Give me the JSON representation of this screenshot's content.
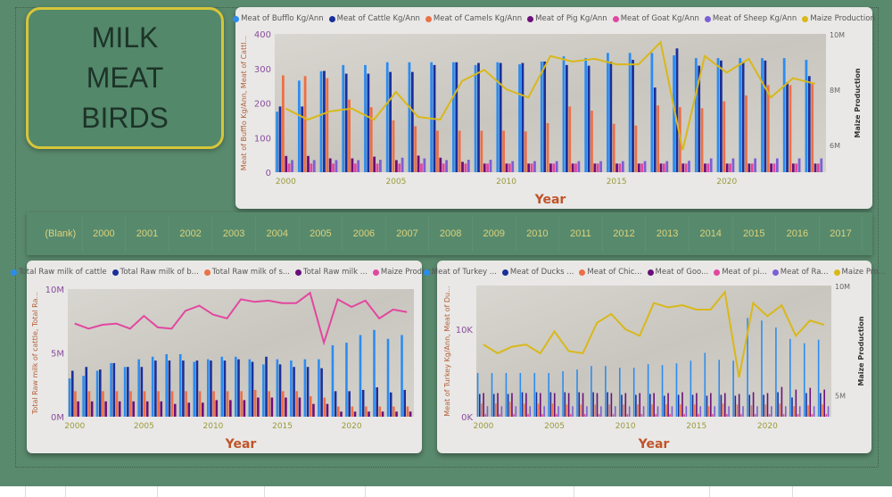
{
  "title": {
    "lines": [
      "MILK",
      "MEAT",
      "BIRDS"
    ]
  },
  "slicer": {
    "items": [
      "(Blank)",
      "2000",
      "2001",
      "2002",
      "2003",
      "2004",
      "2005",
      "2006",
      "2007",
      "2008",
      "2009",
      "2010",
      "2011",
      "2012",
      "2013",
      "2014",
      "2015",
      "2016",
      "2017"
    ]
  },
  "colors": {
    "background": "#5a8a6e",
    "title_border": "#d6c53a",
    "card": "#e9e8e6"
  },
  "chart_data": [
    {
      "type": "bar",
      "title": "",
      "xlabel": "Year",
      "ylabel": "Meat of Bufflo Kg/Ann, Meat of Cattl...",
      "y2label": "Maize Production",
      "x": [
        2000,
        2001,
        2002,
        2003,
        2004,
        2005,
        2006,
        2007,
        2008,
        2009,
        2010,
        2011,
        2012,
        2013,
        2014,
        2015,
        2016,
        2017,
        2018,
        2019,
        2020,
        2021,
        2022,
        2023,
        2024
      ],
      "x_ticks": [
        "2000",
        "2005",
        "2010",
        "2015",
        "2020"
      ],
      "y_ticks": [
        "0",
        "100",
        "200",
        "300",
        "400"
      ],
      "y2_ticks": [
        "6M",
        "8M",
        "10M"
      ],
      "ylim": [
        0,
        400
      ],
      "y2lim": [
        5000000,
        10000000
      ],
      "legend": "top",
      "series": [
        {
          "name": "Meat of Bufflo Kg/Ann",
          "color": "#2b8cf0",
          "values": [
            175,
            265,
            292,
            310,
            310,
            318,
            318,
            318,
            318,
            310,
            318,
            312,
            320,
            335,
            330,
            345,
            345,
            345,
            338,
            330,
            330,
            330,
            330,
            330,
            325
          ]
        },
        {
          "name": "Meat of Cattle Kg/Ann",
          "color": "#1a2f9a",
          "values": [
            190,
            190,
            293,
            285,
            285,
            290,
            290,
            310,
            318,
            316,
            316,
            316,
            320,
            310,
            308,
            320,
            325,
            245,
            358,
            308,
            323,
            320,
            323,
            260,
            278
          ]
        },
        {
          "name": "Meat of Camels Kg/Ann",
          "color": "#ec7046",
          "values": [
            280,
            278,
            272,
            210,
            188,
            150,
            133,
            120,
            120,
            120,
            120,
            118,
            142,
            190,
            178,
            140,
            135,
            193,
            188,
            185,
            205,
            222,
            252,
            252,
            255
          ]
        },
        {
          "name": "Meat of Pig Kg/Ann",
          "color": "#6b0f7a",
          "values": [
            47,
            47,
            40,
            40,
            45,
            35,
            48,
            42,
            30,
            25,
            25,
            25,
            25,
            25,
            25,
            25,
            25,
            25,
            25,
            25,
            25,
            25,
            25,
            25,
            25
          ]
        },
        {
          "name": "Meat of Goat Kg/Ann",
          "color": "#e2479f",
          "values": [
            25,
            25,
            25,
            25,
            25,
            25,
            25,
            25,
            25,
            25,
            25,
            25,
            25,
            25,
            25,
            25,
            25,
            25,
            25,
            25,
            25,
            25,
            25,
            25,
            25
          ]
        },
        {
          "name": "Meat of Sheep Kg/Ann",
          "color": "#7a5fd6",
          "values": [
            35,
            35,
            35,
            35,
            36,
            42,
            40,
            35,
            36,
            36,
            32,
            32,
            32,
            32,
            32,
            32,
            32,
            32,
            33,
            40,
            40,
            40,
            40,
            40,
            40
          ]
        }
      ],
      "line": {
        "name": "Maize Production",
        "color": "#d9b81a",
        "axis": "right",
        "values": [
          7300000,
          6900000,
          7200000,
          7300000,
          6900000,
          7900000,
          7000000,
          6900000,
          8300000,
          8700000,
          8000000,
          7700000,
          9200000,
          9000000,
          9100000,
          8900000,
          8900000,
          9700000,
          5800000,
          9200000,
          8600000,
          9100000,
          7700000,
          8400000,
          8200000
        ]
      }
    },
    {
      "type": "bar",
      "title": "",
      "xlabel": "Year",
      "ylabel": "Total Raw milk of cattle, Total Ra...",
      "y2label": "",
      "x": [
        2000,
        2001,
        2002,
        2003,
        2004,
        2005,
        2006,
        2007,
        2008,
        2009,
        2010,
        2011,
        2012,
        2013,
        2014,
        2015,
        2016,
        2017,
        2018,
        2019,
        2020,
        2021,
        2022,
        2023,
        2024
      ],
      "x_ticks": [
        "2000",
        "2005",
        "2010",
        "2015",
        "2020"
      ],
      "y_ticks": [
        "0M",
        "5M",
        "10M"
      ],
      "y2_ticks": [],
      "ylim": [
        0,
        10000000
      ],
      "legend": "top",
      "series": [
        {
          "name": "Total Raw milk of cattle",
          "color": "#2b8cf0",
          "values": [
            3000000,
            3200000,
            3600000,
            4200000,
            3900000,
            4500000,
            4700000,
            4900000,
            4900000,
            4300000,
            4500000,
            4700000,
            4700000,
            4500000,
            4100000,
            4500000,
            4400000,
            4500000,
            4500000,
            5600000,
            5800000,
            6400000,
            6800000,
            6100000,
            6400000
          ]
        },
        {
          "name": "Total Raw milk of b...",
          "color": "#1a2f9a",
          "values": [
            3600000,
            3900000,
            3700000,
            4200000,
            3900000,
            3900000,
            4400000,
            4400000,
            4400000,
            4400000,
            4400000,
            4400000,
            4500000,
            4300000,
            4700000,
            4100000,
            3900000,
            3900000,
            3800000,
            2000000,
            2000000,
            2100000,
            2300000,
            1900000,
            2100000
          ]
        },
        {
          "name": "Total Raw milk of s...",
          "color": "#ec7046",
          "values": [
            2000000,
            2000000,
            2000000,
            2000000,
            2000000,
            2000000,
            2000000,
            2000000,
            2000000,
            2000000,
            2000000,
            2000000,
            2000000,
            2100000,
            2000000,
            2000000,
            2000000,
            1600000,
            1500000,
            800000,
            800000,
            800000,
            800000,
            800000,
            800000
          ]
        },
        {
          "name": "Total Raw milk ...",
          "color": "#6b0f7a",
          "values": [
            1200000,
            1200000,
            1200000,
            1200000,
            1200000,
            1200000,
            1200000,
            1000000,
            1100000,
            1100000,
            1300000,
            1300000,
            1300000,
            1500000,
            1500000,
            1500000,
            1500000,
            1000000,
            1000000,
            400000,
            400000,
            400000,
            400000,
            400000,
            400000
          ]
        }
      ],
      "line": {
        "name": "Maize Produc...",
        "color": "#e2479f",
        "axis": "left",
        "values": [
          7300000,
          6900000,
          7200000,
          7300000,
          6900000,
          7900000,
          7000000,
          6900000,
          8300000,
          8700000,
          8000000,
          7700000,
          9200000,
          9000000,
          9100000,
          8900000,
          8900000,
          9700000,
          5800000,
          9200000,
          8600000,
          9100000,
          7700000,
          8400000,
          8200000
        ]
      }
    },
    {
      "type": "bar",
      "title": "",
      "xlabel": "Year",
      "ylabel": "Meat of Turkey Kg/Ann, Meat of Du...",
      "y2label": "Maize Production",
      "x": [
        2000,
        2001,
        2002,
        2003,
        2004,
        2005,
        2006,
        2007,
        2008,
        2009,
        2010,
        2011,
        2012,
        2013,
        2014,
        2015,
        2016,
        2017,
        2018,
        2019,
        2020,
        2021,
        2022,
        2023,
        2024
      ],
      "x_ticks": [
        "2000",
        "2005",
        "2010",
        "2015",
        "2020"
      ],
      "y_ticks": [
        "0K",
        "10K"
      ],
      "y2_ticks": [
        "5M",
        "10M"
      ],
      "ylim": [
        0,
        15000
      ],
      "y2lim": [
        4000000,
        10000000
      ],
      "legend": "top",
      "series": [
        {
          "name": "Meat of Turkey ...",
          "color": "#2b8cf0",
          "values": [
            5000,
            5000,
            5000,
            5000,
            5000,
            5000,
            5200,
            5400,
            5800,
            5800,
            5600,
            5600,
            6000,
            5900,
            6100,
            6400,
            7300,
            6500,
            6400,
            11300,
            11000,
            10200,
            8900,
            8400,
            8800
          ]
        },
        {
          "name": "Meat of Ducks ...",
          "color": "#1a2f9a",
          "values": [
            2600,
            2600,
            2600,
            2800,
            2800,
            2800,
            2800,
            2800,
            2800,
            2800,
            2500,
            2500,
            2600,
            2400,
            2500,
            2500,
            2400,
            2500,
            2400,
            2500,
            2500,
            2800,
            2200,
            2700,
            2700
          ]
        },
        {
          "name": "Meat of Chic...",
          "color": "#ec7046",
          "values": [
            1500,
            1500,
            1700,
            1500,
            1500,
            1500,
            1400,
            1400,
            1400,
            1400,
            1400,
            1400,
            1400,
            1400,
            1400,
            1400,
            1200,
            1500,
            1400,
            1300,
            1400,
            1500,
            1200,
            1300,
            1400
          ]
        },
        {
          "name": "Meat of Goo...",
          "color": "#6b0f7a",
          "values": [
            2700,
            2700,
            2700,
            2700,
            2700,
            2700,
            2700,
            2700,
            2700,
            2700,
            2700,
            2700,
            2700,
            2700,
            2800,
            2700,
            2700,
            2700,
            2600,
            2800,
            2700,
            3400,
            3100,
            3300,
            3100
          ]
        },
        {
          "name": "Meat of pi...",
          "color": "#e2479f",
          "values": [
            300,
            300,
            300,
            300,
            300,
            300,
            300,
            300,
            300,
            300,
            300,
            300,
            300,
            300,
            300,
            300,
            300,
            300,
            300,
            300,
            300,
            300,
            300,
            300,
            300
          ]
        },
        {
          "name": "Meat of Ra...",
          "color": "#7a5fd6",
          "values": [
            1200,
            1200,
            1200,
            1200,
            1200,
            1200,
            1200,
            1200,
            1200,
            1200,
            1200,
            1200,
            1200,
            1200,
            1200,
            1200,
            1200,
            1200,
            1200,
            1200,
            1200,
            1200,
            1200,
            1200,
            1200
          ]
        }
      ],
      "line": {
        "name": "Maize Pro...",
        "color": "#d9b81a",
        "axis": "right",
        "values": [
          7300000,
          6900000,
          7200000,
          7300000,
          6900000,
          7900000,
          7000000,
          6900000,
          8300000,
          8700000,
          8000000,
          7700000,
          9200000,
          9000000,
          9100000,
          8900000,
          8900000,
          9700000,
          5800000,
          9200000,
          8600000,
          9100000,
          7700000,
          8400000,
          8200000
        ]
      }
    }
  ]
}
